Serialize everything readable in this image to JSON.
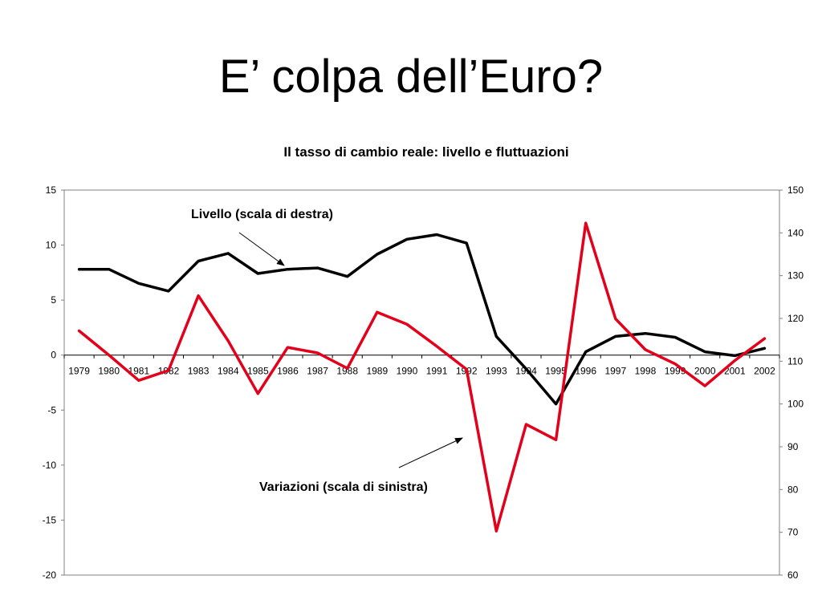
{
  "slide_title": "E’ colpa dell’Euro?",
  "chart_data": {
    "type": "line",
    "title": "Il tasso di cambio reale: livello e fluttuazioni",
    "categories": [
      "1979",
      "1980",
      "1981",
      "1982",
      "1983",
      "1984",
      "1985",
      "1986",
      "1987",
      "1988",
      "1989",
      "1990",
      "1991",
      "1992",
      "1993",
      "1994",
      "1995",
      "1996",
      "1997",
      "1998",
      "1999",
      "2000",
      "2001",
      "2002"
    ],
    "left_axis": {
      "ylim": [
        -20,
        15
      ],
      "ticks": [
        15,
        10,
        5,
        0,
        -5,
        -10,
        -15,
        -20
      ]
    },
    "right_axis": {
      "ylim": [
        60,
        150
      ],
      "ticks": [
        150,
        140,
        130,
        120,
        110,
        100,
        90,
        80,
        70,
        60
      ]
    },
    "series": [
      {
        "name": "Livello (scala di destra)",
        "axis": "right",
        "color": "#000000",
        "values": [
          131.5,
          131.5,
          128.2,
          126.4,
          133.4,
          135.2,
          130.5,
          131.5,
          131.8,
          129.8,
          135.0,
          138.5,
          139.6,
          137.6,
          115.8,
          108.2,
          100.0,
          112.2,
          115.8,
          116.5,
          115.6,
          112.2,
          111.3,
          113.0
        ]
      },
      {
        "name": "Variazioni (scala di sinistra)",
        "axis": "left",
        "color": "#e3001b",
        "values": [
          2.2,
          0.0,
          -2.3,
          -1.4,
          5.4,
          1.3,
          -3.5,
          0.7,
          0.2,
          -1.2,
          3.9,
          2.8,
          0.8,
          -1.3,
          -16.0,
          -6.3,
          -7.7,
          12.0,
          3.3,
          0.5,
          -0.8,
          -2.8,
          -0.5,
          1.5
        ]
      }
    ],
    "annotations": [
      {
        "text": "Livello (scala di destra)",
        "points_to": "Livello (scala di destra)"
      },
      {
        "text": "Variazioni (scala di sinistra)",
        "points_to": "Variazioni (scala di sinistra)"
      }
    ]
  }
}
